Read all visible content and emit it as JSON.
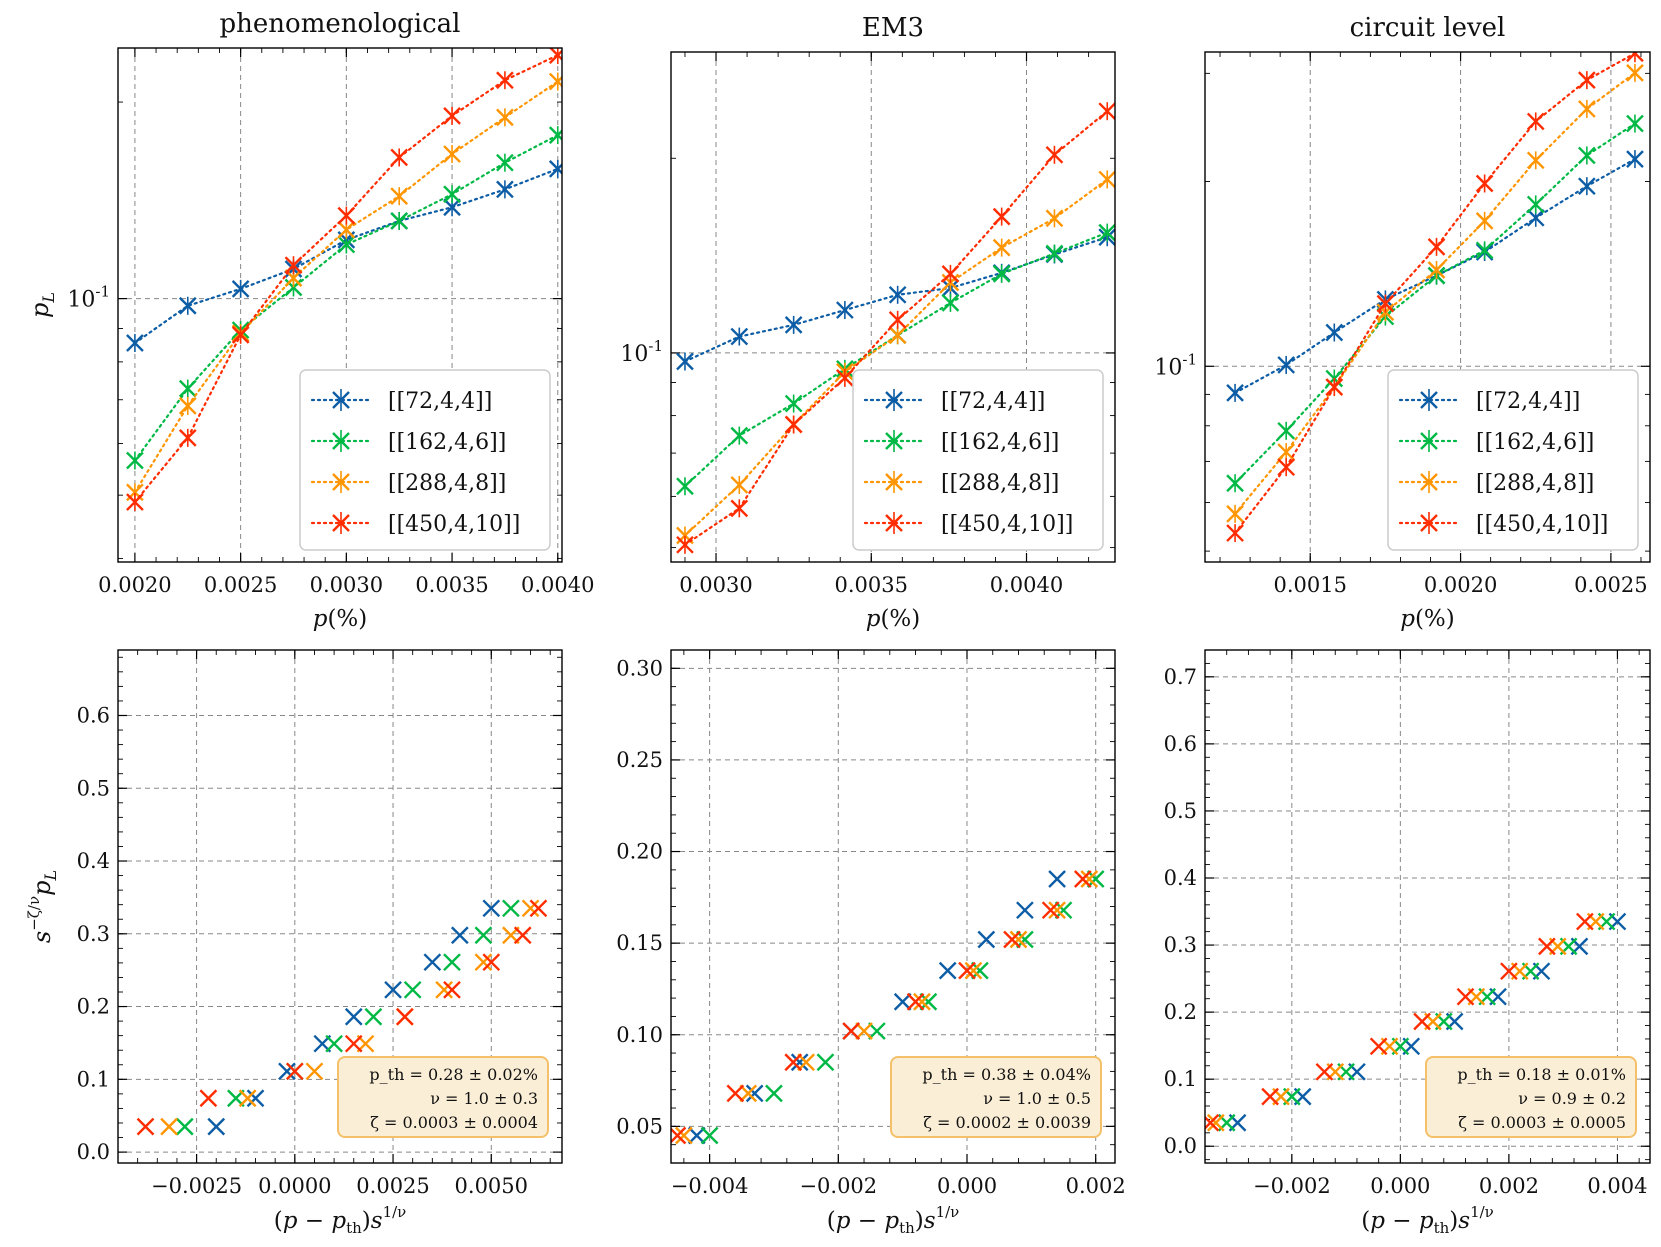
{
  "colors": {
    "blue": "#0c5da5",
    "green": "#00b945",
    "orange": "#ff9500",
    "red": "#ff2c00"
  },
  "legend_labels": [
    "[[72,4,4]]",
    "[[162,4,6]]",
    "[[288,4,8]]",
    "[[450,4,10]]"
  ],
  "chart_data": [
    {
      "type": "line",
      "yscale": "log",
      "title": "phenomenological",
      "xlabel": "p(%)",
      "ylabel": "p_L",
      "xlim": [
        0.00192,
        0.00402
      ],
      "ylim": [
        0.0395,
        0.242
      ],
      "xticks": [
        "0.0020",
        "0.0025",
        "0.0030",
        "0.0035",
        "0.0040"
      ],
      "xtick_values": [
        0.002,
        0.0025,
        0.003,
        0.0035,
        0.004
      ],
      "ytick_label": "10^-1",
      "ytick_value": 0.1,
      "legend_position": "lower-right",
      "x": [
        0.002,
        0.00225,
        0.0025,
        0.00275,
        0.003,
        0.00325,
        0.0035,
        0.00375,
        0.004
      ],
      "series": [
        {
          "name": "[[72,4,4]]",
          "color": "blue",
          "values": [
            0.0855,
            0.0975,
            0.1035,
            0.111,
            0.123,
            0.1315,
            0.138,
            0.147,
            0.158
          ]
        },
        {
          "name": "[[162,4,6]]",
          "color": "green",
          "values": [
            0.0565,
            0.0728,
            0.0895,
            0.104,
            0.121,
            0.1315,
            0.1445,
            0.1615,
            0.178
          ]
        },
        {
          "name": "[[288,4,8]]",
          "color": "orange",
          "values": [
            0.0505,
            0.0685,
            0.0885,
            0.1075,
            0.1275,
            0.1435,
            0.1665,
            0.1895,
            0.215
          ]
        },
        {
          "name": "[[450,4,10]]",
          "color": "red",
          "values": [
            0.0488,
            0.0612,
            0.088,
            0.1125,
            0.134,
            0.1645,
            0.1905,
            0.216,
            0.236
          ]
        }
      ]
    },
    {
      "type": "line",
      "yscale": "log",
      "title": "EM3",
      "xlabel": "p(%)",
      "ylabel": "",
      "xlim": [
        0.002855,
        0.004285
      ],
      "ylim": [
        0.0475,
        0.292
      ],
      "xticks": [
        "0.0030",
        "0.0035",
        "0.0040"
      ],
      "xtick_values": [
        0.003,
        0.0035,
        0.004
      ],
      "ytick_label": "10^-1",
      "ytick_value": 0.1,
      "legend_position": "lower-right",
      "x": [
        0.0029,
        0.003075,
        0.00325,
        0.003415,
        0.003585,
        0.003755,
        0.00392,
        0.00409,
        0.00426
      ],
      "series": [
        {
          "name": "[[72,4,4]]",
          "color": "blue",
          "values": [
            0.097,
            0.106,
            0.1105,
            0.1165,
            0.123,
            0.126,
            0.133,
            0.142,
            0.151
          ]
        },
        {
          "name": "[[162,4,6]]",
          "color": "green",
          "values": [
            0.0622,
            0.0745,
            0.0835,
            0.0945,
            0.1065,
            0.1195,
            0.1325,
            0.1425,
            0.1535
          ]
        },
        {
          "name": "[[288,4,8]]",
          "color": "orange",
          "values": [
            0.0522,
            0.0625,
            0.0775,
            0.0935,
            0.1065,
            0.1285,
            0.1455,
            0.1615,
            0.1855
          ]
        },
        {
          "name": "[[450,4,10]]",
          "color": "red",
          "values": [
            0.0505,
            0.0575,
            0.0775,
            0.0915,
            0.1125,
            0.1325,
            0.1625,
            0.2025,
            0.2365
          ]
        }
      ]
    },
    {
      "type": "line",
      "yscale": "log",
      "title": "circuit level",
      "xlabel": "p(%)",
      "ylabel": "",
      "xlim": [
        0.00115,
        0.00263
      ],
      "ylim": [
        0.048,
        0.325
      ],
      "xticks": [
        "0.0015",
        "0.0020",
        "0.0025"
      ],
      "xtick_values": [
        0.0015,
        0.002,
        0.0025
      ],
      "ytick_label": "10^-1",
      "ytick_value": 0.1,
      "legend_position": "lower-right",
      "x": [
        0.00125,
        0.00142,
        0.00158,
        0.00175,
        0.00192,
        0.00208,
        0.00225,
        0.00242,
        0.00258
      ],
      "series": [
        {
          "name": "[[72,4,4]]",
          "color": "blue",
          "values": [
            0.0905,
            0.1005,
            0.1135,
            0.1285,
            0.1405,
            0.1535,
            0.1745,
            0.1965,
            0.2175
          ]
        },
        {
          "name": "[[162,4,6]]",
          "color": "green",
          "values": [
            0.0645,
            0.0785,
            0.0955,
            0.1205,
            0.1405,
            0.1545,
            0.1835,
            0.2205,
            0.2485
          ]
        },
        {
          "name": "[[288,4,8]]",
          "color": "orange",
          "values": [
            0.0575,
            0.0725,
            0.0925,
            0.1225,
            0.1435,
            0.1725,
            0.2165,
            0.2625,
            0.3005
          ]
        },
        {
          "name": "[[450,4,10]]",
          "color": "red",
          "values": [
            0.0535,
            0.0685,
            0.0925,
            0.1265,
            0.1565,
            0.1985,
            0.2505,
            0.2925,
            0.3235
          ]
        }
      ]
    },
    {
      "type": "scatter",
      "title": "",
      "xlabel": "(p − p_th)s^(1/ν)",
      "ylabel": "s^(−ζ/ν)p_L",
      "xlim": [
        -0.0045,
        0.0068
      ],
      "ylim": [
        -0.015,
        0.69
      ],
      "xticks": [
        "−0.0025",
        "0.0000",
        "0.0025",
        "0.0050"
      ],
      "xtick_values": [
        -0.0025,
        0.0,
        0.0025,
        0.005
      ],
      "yticks": [
        "0.0",
        "0.1",
        "0.2",
        "0.3",
        "0.4",
        "0.5",
        "0.6"
      ],
      "ytick_values": [
        0.0,
        0.1,
        0.2,
        0.3,
        0.4,
        0.5,
        0.6
      ],
      "annotation": {
        "line1": "p_th = 0.28 ± 0.02%",
        "line2": "ν = 1.0 ± 0.3",
        "line3": "ζ = 0.0003 ± 0.0004"
      },
      "series": [
        {
          "name": "[[72,4,4]]",
          "color": "blue",
          "x": [
            -0.002,
            -0.001,
            -0.0002,
            0.0007,
            0.0015,
            0.0025,
            0.0035,
            0.0042,
            0.005
          ],
          "y": [
            0.035,
            0.074,
            0.111,
            0.149,
            0.186,
            0.223,
            0.261,
            0.298,
            0.335
          ]
        },
        {
          "name": "[[162,4,6]]",
          "color": "green",
          "x": [
            -0.0028,
            -0.0015,
            0.0,
            0.001,
            0.002,
            0.003,
            0.004,
            0.0048,
            0.0055
          ],
          "y": [
            0.035,
            0.074,
            0.111,
            0.149,
            0.186,
            0.223,
            0.261,
            0.298,
            0.335
          ]
        },
        {
          "name": "[[288,4,8]]",
          "color": "orange",
          "x": [
            -0.0032,
            -0.0012,
            0.0005,
            0.0018,
            0.0028,
            0.0038,
            0.0048,
            0.0055,
            0.006
          ],
          "y": [
            0.035,
            0.074,
            0.111,
            0.149,
            0.186,
            0.223,
            0.261,
            0.298,
            0.335
          ]
        },
        {
          "name": "[[450,4,10]]",
          "color": "red",
          "x": [
            -0.0038,
            -0.0022,
            0.0,
            0.0015,
            0.0028,
            0.004,
            0.005,
            0.0058,
            0.0062
          ],
          "y": [
            0.035,
            0.074,
            0.111,
            0.149,
            0.186,
            0.223,
            0.261,
            0.298,
            0.335
          ]
        }
      ]
    },
    {
      "type": "scatter",
      "title": "",
      "xlabel": "(p − p_th)s^(1/ν)",
      "ylabel": "",
      "xlim": [
        -0.0046,
        0.0023
      ],
      "ylim": [
        0.03,
        0.31
      ],
      "xticks": [
        "−0.004",
        "−0.002",
        "0.000",
        "0.002"
      ],
      "xtick_values": [
        -0.004,
        -0.002,
        0.0,
        0.002
      ],
      "yticks": [
        "0.05",
        "0.10",
        "0.15",
        "0.20",
        "0.25",
        "0.30"
      ],
      "ytick_values": [
        0.05,
        0.1,
        0.15,
        0.2,
        0.25,
        0.3
      ],
      "annotation": {
        "line1": "p_th = 0.38 ± 0.04%",
        "line2": "ν = 1.0 ± 0.5",
        "line3": "ζ = 0.0002 ± 0.0039"
      },
      "series": [
        {
          "name": "[[72,4,4]]",
          "color": "blue",
          "x": [
            -0.0042,
            -0.0033,
            -0.0026,
            -0.0018,
            -0.001,
            -0.0003,
            0.0003,
            0.0009,
            0.0014
          ],
          "y": [
            0.045,
            0.068,
            0.085,
            0.102,
            0.118,
            0.135,
            0.152,
            0.168,
            0.185
          ]
        },
        {
          "name": "[[162,4,6]]",
          "color": "green",
          "x": [
            -0.004,
            -0.003,
            -0.0022,
            -0.0014,
            -0.0006,
            0.0002,
            0.0009,
            0.0015,
            0.002
          ],
          "y": [
            0.045,
            0.068,
            0.085,
            0.102,
            0.118,
            0.135,
            0.152,
            0.168,
            0.185
          ]
        },
        {
          "name": "[[288,4,8]]",
          "color": "orange",
          "x": [
            -0.0044,
            -0.0034,
            -0.0025,
            -0.0016,
            -0.0007,
            0.0001,
            0.0008,
            0.0014,
            0.0019
          ],
          "y": [
            0.045,
            0.068,
            0.085,
            0.102,
            0.118,
            0.135,
            0.152,
            0.168,
            0.185
          ]
        },
        {
          "name": "[[450,4,10]]",
          "color": "red",
          "x": [
            -0.0045,
            -0.0036,
            -0.0027,
            -0.0018,
            -0.0008,
            0.0,
            0.0007,
            0.0013,
            0.0018
          ],
          "y": [
            0.045,
            0.068,
            0.085,
            0.102,
            0.118,
            0.135,
            0.152,
            0.168,
            0.185
          ]
        }
      ]
    },
    {
      "type": "scatter",
      "title": "",
      "xlabel": "(p − p_th)s^(1/ν)",
      "ylabel": "",
      "xlim": [
        -0.0036,
        0.0046
      ],
      "ylim": [
        -0.025,
        0.74
      ],
      "xticks": [
        "−0.002",
        "0.000",
        "0.002",
        "0.004"
      ],
      "xtick_values": [
        -0.002,
        0.0,
        0.002,
        0.004
      ],
      "yticks": [
        "0.0",
        "0.1",
        "0.2",
        "0.3",
        "0.4",
        "0.5",
        "0.6",
        "0.7"
      ],
      "ytick_values": [
        0.0,
        0.1,
        0.2,
        0.3,
        0.4,
        0.5,
        0.6,
        0.7
      ],
      "annotation": {
        "line1": "p_th = 0.18 ± 0.01%",
        "line2": "ν = 0.9 ± 0.2",
        "line3": "ζ = 0.0003 ± 0.0005"
      },
      "series": [
        {
          "name": "[[72,4,4]]",
          "color": "blue",
          "x": [
            -0.003,
            -0.0018,
            -0.0008,
            0.0002,
            0.001,
            0.0018,
            0.0026,
            0.0033,
            0.004
          ],
          "y": [
            0.035,
            0.074,
            0.111,
            0.149,
            0.186,
            0.223,
            0.261,
            0.298,
            0.335
          ]
        },
        {
          "name": "[[162,4,6]]",
          "color": "green",
          "x": [
            -0.0032,
            -0.002,
            -0.001,
            0.0,
            0.0008,
            0.0016,
            0.0024,
            0.0031,
            0.0038
          ],
          "y": [
            0.035,
            0.074,
            0.111,
            0.149,
            0.186,
            0.223,
            0.261,
            0.298,
            0.335
          ]
        },
        {
          "name": "[[288,4,8]]",
          "color": "orange",
          "x": [
            -0.0034,
            -0.0022,
            -0.0012,
            -0.0002,
            0.0006,
            0.0014,
            0.0022,
            0.0029,
            0.0036
          ],
          "y": [
            0.035,
            0.074,
            0.111,
            0.149,
            0.186,
            0.223,
            0.261,
            0.298,
            0.335
          ]
        },
        {
          "name": "[[450,4,10]]",
          "color": "red",
          "x": [
            -0.0035,
            -0.0024,
            -0.0014,
            -0.0004,
            0.0004,
            0.0012,
            0.002,
            0.0027,
            0.0034
          ],
          "y": [
            0.035,
            0.074,
            0.111,
            0.149,
            0.186,
            0.223,
            0.261,
            0.298,
            0.335
          ]
        }
      ]
    }
  ]
}
